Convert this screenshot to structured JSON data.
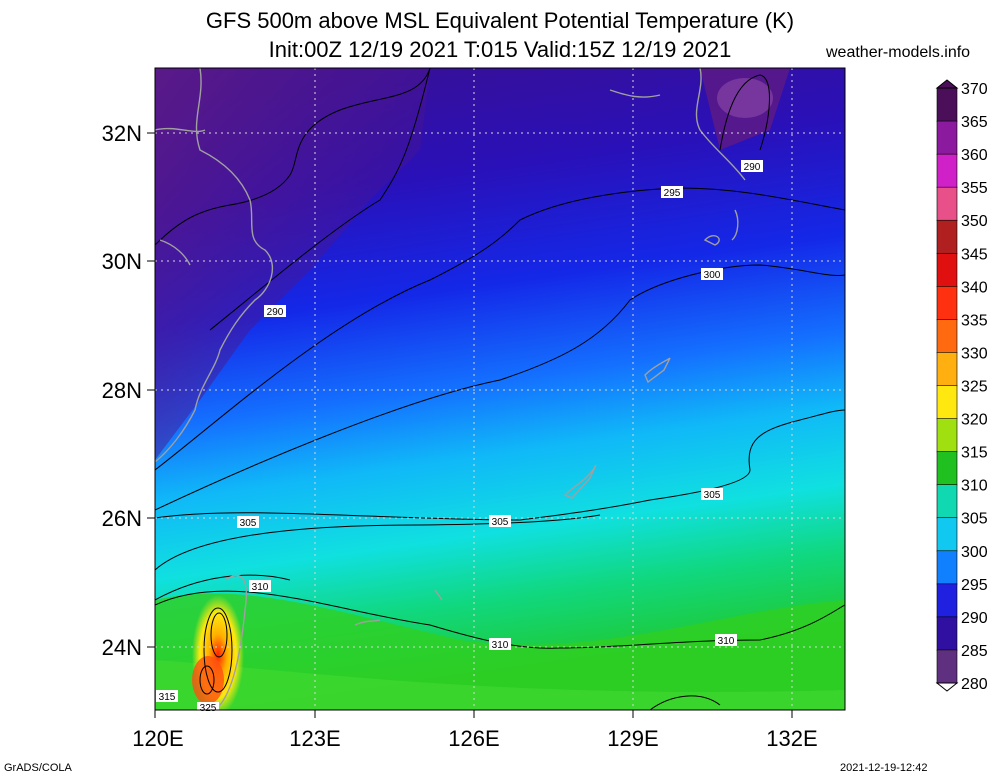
{
  "title": {
    "line1": "GFS 500m above MSL Equivalent Potential Temperature (K)",
    "line2": "Init:00Z 12/19 2021 T:015 Valid:15Z 12/19 2021",
    "site": "weather-models.info"
  },
  "footer": {
    "credit": "GrADS/COLA",
    "timestamp": "2021-12-19-12:42"
  },
  "map": {
    "lon_labels": [
      "120E",
      "123E",
      "126E",
      "129E",
      "132E"
    ],
    "lat_labels": [
      "32N",
      "30N",
      "28N",
      "26N",
      "24N"
    ],
    "contour_labels": [
      "290",
      "295",
      "300",
      "305",
      "305",
      "305",
      "310",
      "310",
      "310",
      "290",
      "315",
      "325"
    ]
  },
  "colorbar": {
    "unit": "K",
    "labels": [
      "370",
      "365",
      "360",
      "355",
      "350",
      "345",
      "340",
      "335",
      "330",
      "325",
      "320",
      "315",
      "310",
      "305",
      "300",
      "295",
      "290",
      "285",
      "280"
    ],
    "colors": [
      "#4b0f5a",
      "#8c1a9e",
      "#d020c8",
      "#e8508a",
      "#b02020",
      "#e01010",
      "#ff3010",
      "#ff6a10",
      "#ffb010",
      "#ffe810",
      "#a0e010",
      "#20c020",
      "#10d8b0",
      "#10c8f0",
      "#1080ff",
      "#2020e0",
      "#3010a0",
      "#603080",
      "#c8b8e0"
    ]
  }
}
